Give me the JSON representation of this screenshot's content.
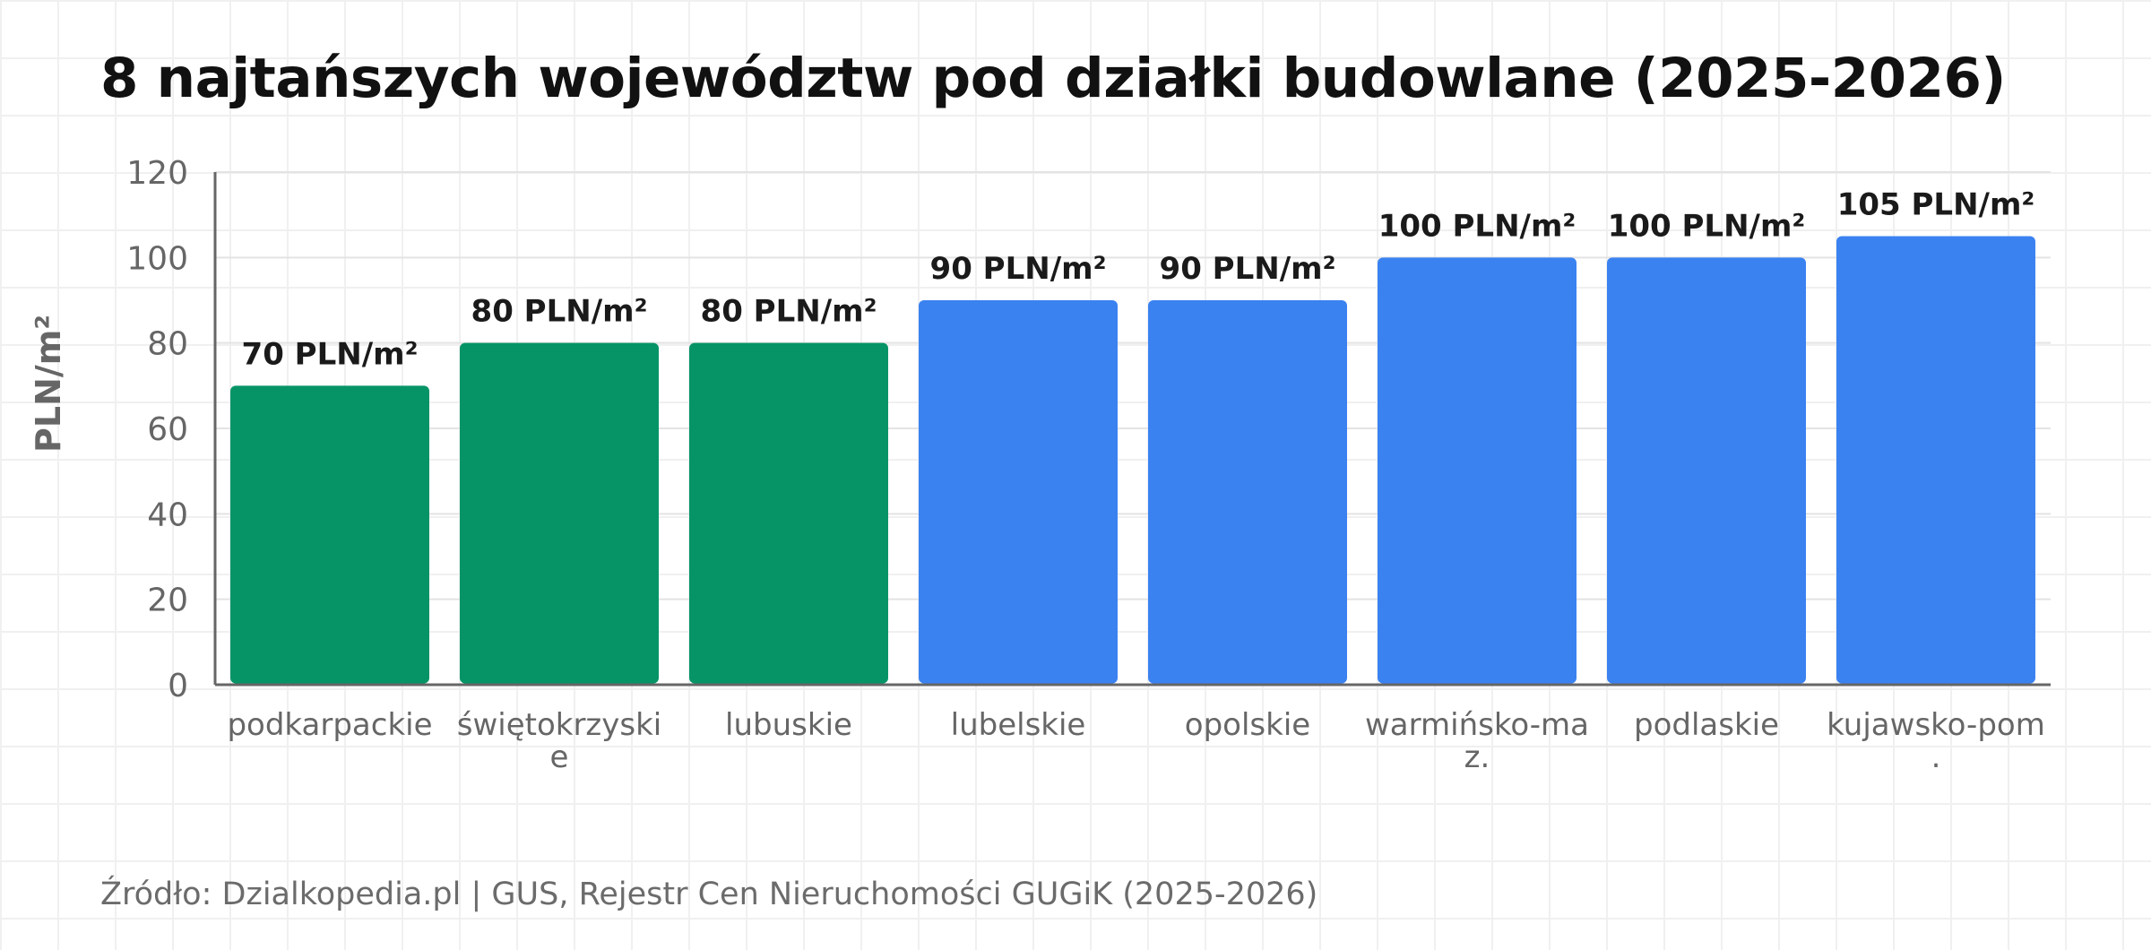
{
  "title": "8 najtańszych województw pod działki budowlane (2025-2026)",
  "source": "Źródło: Dzialkopedia.pl | GUS, Rejestr Cen Nieruchomości GUGiK (2025-2026)",
  "chart_data": {
    "type": "bar",
    "title": "8 najtańszych województw pod działki budowlane (2025-2026)",
    "xlabel": "",
    "ylabel": "PLN/m²",
    "ylim": [
      0,
      120
    ],
    "yticks": [
      0,
      20,
      40,
      60,
      80,
      100,
      120
    ],
    "grid": true,
    "categories": [
      [
        "podkarpackie"
      ],
      [
        "świętokrzyski",
        "e"
      ],
      [
        "lubuskie"
      ],
      [
        "lubelskie"
      ],
      [
        "opolskie"
      ],
      [
        "warmińsko-ma",
        "z."
      ],
      [
        "podlaskie"
      ],
      [
        "kujawsko-pom",
        "."
      ]
    ],
    "values": [
      70,
      80,
      80,
      90,
      90,
      100,
      100,
      105
    ],
    "data_labels": [
      "70 PLN/m²",
      "80 PLN/m²",
      "80 PLN/m²",
      "90 PLN/m²",
      "90 PLN/m²",
      "100 PLN/m²",
      "100 PLN/m²",
      "105 PLN/m²"
    ],
    "colors": [
      "#069467",
      "#069467",
      "#069467",
      "#3b82f1",
      "#3b82f1",
      "#3b82f1",
      "#3b82f1",
      "#3b82f1"
    ],
    "colors_legend": {
      "green": "#069467",
      "blue": "#3b82f1"
    }
  }
}
